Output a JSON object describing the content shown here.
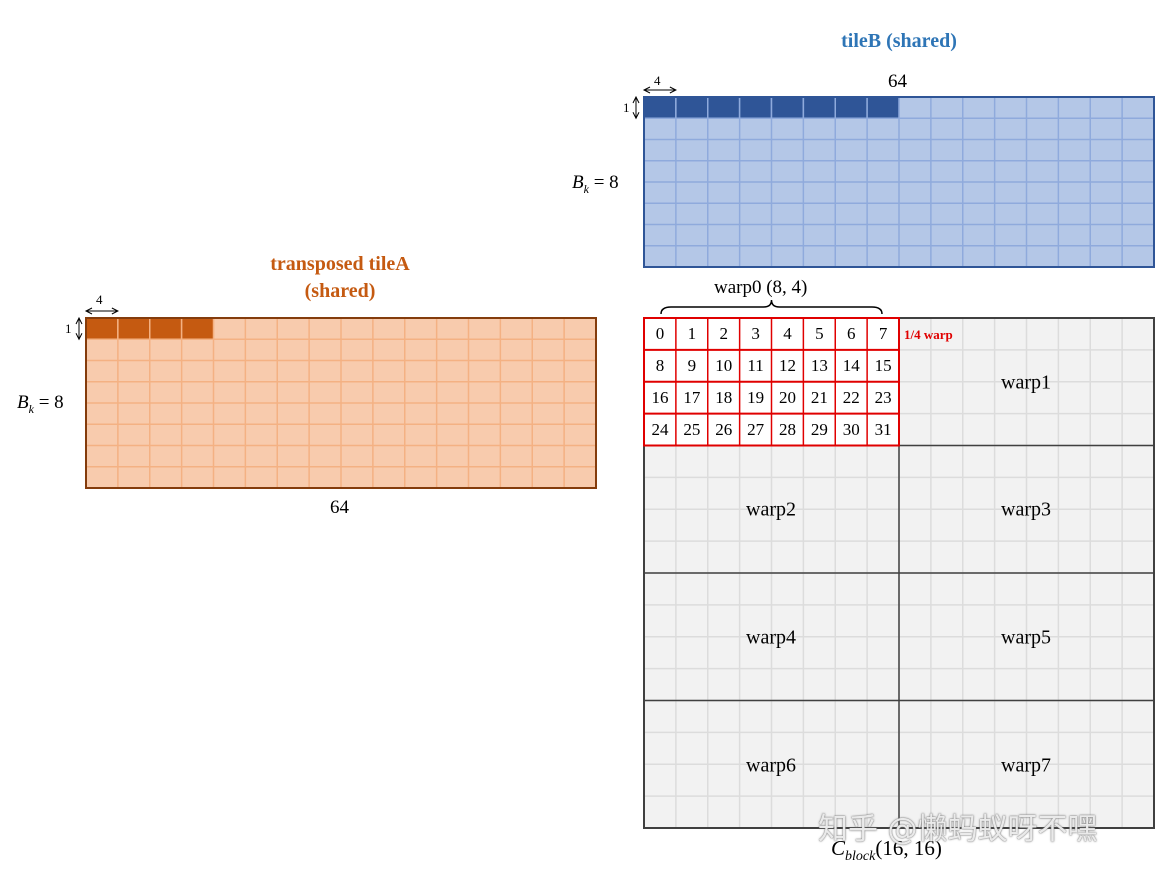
{
  "tileB": {
    "title": "tileB (shared)",
    "width_label": "64",
    "vec_label": "4",
    "row_label": "1",
    "bk_label_sym": "B",
    "bk_label_sub": "k",
    "bk_label_rest": " = 8"
  },
  "tileA": {
    "title_line1": "transposed  tileA",
    "title_line2": "(shared)",
    "width_label": "64",
    "vec_label": "4",
    "row_label": "1",
    "bk_label_sym": "B",
    "bk_label_sub": "k",
    "bk_label_rest": " = 8"
  },
  "warp0": {
    "label": "warp0  (8, 4)",
    "quarter_note": "1/4 warp",
    "threads": [
      "0",
      "1",
      "2",
      "3",
      "4",
      "5",
      "6",
      "7",
      "8",
      "9",
      "10",
      "11",
      "12",
      "13",
      "14",
      "15",
      "16",
      "17",
      "18",
      "19",
      "20",
      "21",
      "22",
      "23",
      "24",
      "25",
      "26",
      "27",
      "28",
      "29",
      "30",
      "31"
    ]
  },
  "warps": [
    "warp1",
    "warp2",
    "warp3",
    "warp4",
    "warp5",
    "warp6",
    "warp7"
  ],
  "cblock": {
    "sym": "C",
    "sub": "block",
    "rest": "(16, 16)"
  },
  "watermark": "知乎 @懒蚂蚁呀不嘿",
  "colors": {
    "tileA_fill": "#f8cbad",
    "tileA_grid": "#f4b183",
    "tileA_border": "#843c0c",
    "tileA_highlight": "#c55a11",
    "tileA_title": "#c55a11",
    "tileB_fill": "#b4c7e7",
    "tileB_grid": "#8faadc",
    "tileB_border": "#2f5597",
    "tileB_highlight": "#2f5597",
    "tileB_title": "#2e75b6",
    "cblock_fill": "#f2f2f2",
    "cblock_grid": "#dcdcdc",
    "cblock_border": "#404040",
    "warp0_border": "#e00000",
    "note_color": "#e00000"
  }
}
